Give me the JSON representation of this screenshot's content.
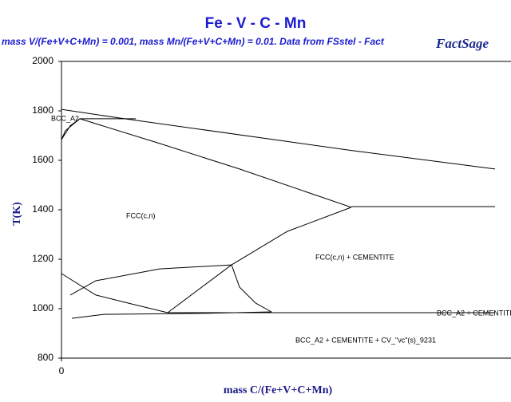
{
  "chart_data": {
    "type": "line",
    "title": "Fe - V - C - Mn",
    "subtitle": "mass V/(Fe+V+C+Mn) = 0.001,  mass Mn/(Fe+V+C+Mn) = 0.01.  Data from FSstel - Fact",
    "logo": "FactSage",
    "x_label": "mass C/(Fe+V+C+Mn)",
    "y_label": "T(K)",
    "xlim": [
      0,
      0.01
    ],
    "xticks": [
      0
    ],
    "ylim": [
      800,
      2000
    ],
    "yticks": [
      800,
      1000,
      1200,
      1400,
      1600,
      1800,
      2000
    ],
    "annotations": [
      "BCC_A2",
      "FCC(c,n)",
      "FCC(c,n) + CEMENTITE",
      "BCC_A2 + CEMENTITE",
      "BCC_A2 + CEMENTITE + CV_\"vc\"(s)_9231"
    ],
    "series": [
      {
        "color": "#000000",
        "x": [
          0,
          0.001344,
          0.006685,
          0.01
        ],
        "values": [
          1806,
          1771,
          1640,
          1565
        ]
      },
      {
        "color": "#000000",
        "x": [
          0.000424,
          0.001713
        ],
        "values": [
          1768,
          1768
        ]
      },
      {
        "color": "#000000",
        "x": [
          0,
          0.000203,
          0.000424
        ],
        "values": [
          1684,
          1740,
          1768
        ]
      },
      {
        "color": "#000000",
        "x": [
          0,
          9.2e-05,
          0.000424
        ],
        "values": [
          1684,
          1720,
          1768
        ]
      },
      {
        "color": "#000000",
        "x": [
          0.000424,
          0.002265,
          0.004107,
          0.006685
        ],
        "values": [
          1768,
          1668,
          1565,
          1410
        ]
      },
      {
        "color": "#000000",
        "x": [
          0.006685,
          0.005212,
          0.003923,
          0.002449
        ],
        "values": [
          1410,
          1313,
          1177,
          984
        ]
      },
      {
        "color": "#000000",
        "x": [
          0.006685,
          0.01
        ],
        "values": [
          1413,
          1413
        ]
      },
      {
        "color": "#000000",
        "x": [
          0,
          0.000792,
          0.001529,
          0.002449
        ],
        "values": [
          1142,
          1055,
          1023,
          984
        ]
      },
      {
        "color": "#000000",
        "x": [
          0.002449,
          0.01
        ],
        "values": [
          984,
          984
        ]
      },
      {
        "color": "#000000",
        "x": [
          0.000203,
          0.000792,
          0.002265,
          0.003923
        ],
        "values": [
          1055,
          1113,
          1161,
          1177
        ]
      },
      {
        "color": "#000000",
        "x": [
          0.003923,
          0.004107,
          0.004475,
          0.004843
        ],
        "values": [
          1177,
          1087,
          1023,
          987
        ]
      },
      {
        "color": "#000000",
        "x": [
          0.000239,
          0.000976,
          0.003186,
          0.004843
        ],
        "values": [
          961,
          977,
          981,
          987
        ]
      },
      {
        "color": "#000000",
        "x": [
          0,
          0
        ],
        "values": [
          1103,
          1029
        ]
      }
    ]
  }
}
